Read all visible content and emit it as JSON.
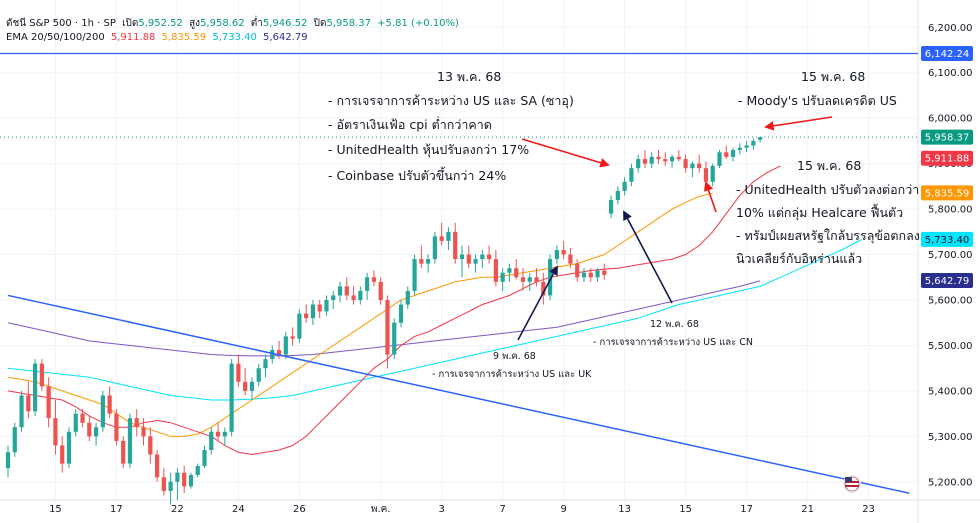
{
  "header": {
    "title": "ดัชนี S&P 500 · 1h · SP",
    "open_label": "เปิด",
    "open": "5,952.52",
    "high_label": "สูง",
    "high": "5,958.62",
    "low_label": "ต่ำ",
    "low": "5,946.52",
    "close_label": "ปิด",
    "close": "5,958.37",
    "change": "+5.81 (+0.10%)",
    "ema_label": "EMA 20/50/100/200",
    "ema_values": [
      "5,911.88",
      "5,835.59",
      "5,733.40",
      "5,642.79"
    ]
  },
  "colors": {
    "up": "#26a69a",
    "down": "#ef5350",
    "ema20": "#f23645",
    "ema50": "#ff9800",
    "ema100": "#00e5ff",
    "ema200": "#7e57c2",
    "trendline": "#2962ff",
    "hline": "#2962ff",
    "arrow_red": "#f21818",
    "arrow_navy": "#131a4e",
    "price_badge": "#089981"
  },
  "chart_data": {
    "type": "candlestick",
    "timeframe": "1h",
    "ylim": [
      5160,
      6260
    ],
    "y_ticks": [
      5200,
      5300,
      5400,
      5500,
      5600,
      5700,
      5800,
      5900,
      6000,
      6100,
      6200
    ],
    "y_tick_labels": [
      "5,200.00",
      "5,300.00",
      "5,400.00",
      "5,500.00",
      "5,600.00",
      "5,700.00",
      "5,800.00",
      "5,900.00",
      "6,000.00",
      "6,100.00",
      "6,200.00"
    ],
    "x_ticks": [
      {
        "label": "15",
        "i": 7
      },
      {
        "label": "17",
        "i": 16
      },
      {
        "label": "22",
        "i": 25
      },
      {
        "label": "24",
        "i": 34
      },
      {
        "label": "26",
        "i": 43
      },
      {
        "label": "พ.ค.",
        "i": 55
      },
      {
        "label": "3",
        "i": 64
      },
      {
        "label": "7",
        "i": 73
      },
      {
        "label": "9",
        "i": 82
      },
      {
        "label": "13",
        "i": 91
      },
      {
        "label": "15",
        "i": 100
      },
      {
        "label": "17",
        "i": 109
      },
      {
        "label": "21",
        "i": 118
      },
      {
        "label": "23",
        "i": 127
      }
    ],
    "x_slots": 134,
    "candles": [
      [
        5230,
        5280,
        5210,
        5265
      ],
      [
        5265,
        5330,
        5255,
        5320
      ],
      [
        5320,
        5400,
        5310,
        5390
      ],
      [
        5390,
        5420,
        5340,
        5355
      ],
      [
        5355,
        5470,
        5345,
        5460
      ],
      [
        5460,
        5470,
        5400,
        5410
      ],
      [
        5410,
        5430,
        5320,
        5340
      ],
      [
        5340,
        5380,
        5260,
        5280
      ],
      [
        5280,
        5300,
        5220,
        5240
      ],
      [
        5240,
        5320,
        5230,
        5310
      ],
      [
        5310,
        5360,
        5300,
        5350
      ],
      [
        5350,
        5360,
        5320,
        5330
      ],
      [
        5330,
        5345,
        5290,
        5300
      ],
      [
        5300,
        5330,
        5280,
        5320
      ],
      [
        5320,
        5400,
        5310,
        5390
      ],
      [
        5390,
        5410,
        5340,
        5350
      ],
      [
        5350,
        5360,
        5280,
        5290
      ],
      [
        5290,
        5300,
        5230,
        5240
      ],
      [
        5240,
        5350,
        5230,
        5340
      ],
      [
        5340,
        5360,
        5300,
        5320
      ],
      [
        5320,
        5340,
        5280,
        5300
      ],
      [
        5300,
        5320,
        5240,
        5260
      ],
      [
        5260,
        5270,
        5200,
        5210
      ],
      [
        5210,
        5230,
        5170,
        5180
      ],
      [
        5180,
        5220,
        5150,
        5200
      ],
      [
        5200,
        5230,
        5160,
        5220
      ],
      [
        5220,
        5235,
        5175,
        5190
      ],
      [
        5190,
        5220,
        5185,
        5215
      ],
      [
        5215,
        5240,
        5210,
        5235
      ],
      [
        5235,
        5280,
        5230,
        5270
      ],
      [
        5270,
        5320,
        5260,
        5310
      ],
      [
        5310,
        5330,
        5290,
        5300
      ],
      [
        5300,
        5320,
        5280,
        5310
      ],
      [
        5310,
        5470,
        5300,
        5460
      ],
      [
        5460,
        5480,
        5410,
        5420
      ],
      [
        5420,
        5450,
        5390,
        5400
      ],
      [
        5400,
        5430,
        5380,
        5420
      ],
      [
        5420,
        5460,
        5410,
        5450
      ],
      [
        5450,
        5480,
        5430,
        5470
      ],
      [
        5470,
        5500,
        5460,
        5490
      ],
      [
        5490,
        5510,
        5470,
        5480
      ],
      [
        5480,
        5530,
        5470,
        5520
      ],
      [
        5520,
        5540,
        5500,
        5515
      ],
      [
        5515,
        5580,
        5505,
        5570
      ],
      [
        5570,
        5590,
        5550,
        5560
      ],
      [
        5560,
        5600,
        5545,
        5590
      ],
      [
        5590,
        5600,
        5560,
        5575
      ],
      [
        5575,
        5610,
        5565,
        5600
      ],
      [
        5600,
        5620,
        5580,
        5610
      ],
      [
        5610,
        5640,
        5595,
        5630
      ],
      [
        5630,
        5650,
        5600,
        5610
      ],
      [
        5610,
        5630,
        5590,
        5600
      ],
      [
        5600,
        5630,
        5590,
        5620
      ],
      [
        5620,
        5660,
        5600,
        5650
      ],
      [
        5650,
        5665,
        5630,
        5640
      ],
      [
        5640,
        5650,
        5590,
        5600
      ],
      [
        5600,
        5610,
        5450,
        5480
      ],
      [
        5480,
        5560,
        5470,
        5550
      ],
      [
        5550,
        5600,
        5540,
        5590
      ],
      [
        5590,
        5630,
        5580,
        5620
      ],
      [
        5620,
        5700,
        5610,
        5690
      ],
      [
        5690,
        5720,
        5670,
        5680
      ],
      [
        5680,
        5700,
        5660,
        5690
      ],
      [
        5690,
        5750,
        5680,
        5740
      ],
      [
        5740,
        5770,
        5720,
        5730
      ],
      [
        5730,
        5760,
        5710,
        5750
      ],
      [
        5750,
        5770,
        5680,
        5690
      ],
      [
        5690,
        5720,
        5650,
        5700
      ],
      [
        5700,
        5720,
        5670,
        5680
      ],
      [
        5680,
        5700,
        5660,
        5690
      ],
      [
        5690,
        5710,
        5670,
        5700
      ],
      [
        5700,
        5720,
        5680,
        5690
      ],
      [
        5690,
        5710,
        5630,
        5640
      ],
      [
        5640,
        5670,
        5620,
        5660
      ],
      [
        5660,
        5680,
        5640,
        5670
      ],
      [
        5670,
        5690,
        5645,
        5650
      ],
      [
        5650,
        5670,
        5620,
        5640
      ],
      [
        5640,
        5660,
        5620,
        5650
      ],
      [
        5650,
        5670,
        5630,
        5640
      ],
      [
        5640,
        5660,
        5590,
        5610
      ],
      [
        5610,
        5700,
        5600,
        5690
      ],
      [
        5690,
        5720,
        5680,
        5710
      ],
      [
        5710,
        5730,
        5690,
        5700
      ],
      [
        5700,
        5715,
        5670,
        5680
      ],
      [
        5680,
        5690,
        5640,
        5650
      ],
      [
        5650,
        5670,
        5640,
        5660
      ],
      [
        5660,
        5670,
        5640,
        5650
      ],
      [
        5650,
        5670,
        5640,
        5665
      ],
      [
        5665,
        5680,
        5645,
        5655
      ],
      [
        5790,
        5830,
        5780,
        5820
      ],
      [
        5820,
        5850,
        5810,
        5840
      ],
      [
        5840,
        5870,
        5830,
        5860
      ],
      [
        5860,
        5900,
        5850,
        5890
      ],
      [
        5890,
        5920,
        5880,
        5910
      ],
      [
        5910,
        5930,
        5890,
        5900
      ],
      [
        5900,
        5925,
        5890,
        5915
      ],
      [
        5915,
        5930,
        5900,
        5910
      ],
      [
        5910,
        5925,
        5895,
        5905
      ],
      [
        5905,
        5920,
        5890,
        5915
      ],
      [
        5915,
        5930,
        5905,
        5910
      ],
      [
        5910,
        5920,
        5880,
        5890
      ],
      [
        5890,
        5905,
        5870,
        5900
      ],
      [
        5900,
        5920,
        5880,
        5890
      ],
      [
        5890,
        5905,
        5850,
        5860
      ],
      [
        5860,
        5900,
        5850,
        5895
      ],
      [
        5895,
        5930,
        5890,
        5925
      ],
      [
        5925,
        5940,
        5910,
        5915
      ],
      [
        5915,
        5935,
        5905,
        5930
      ],
      [
        5930,
        5945,
        5920,
        5935
      ],
      [
        5935,
        5950,
        5925,
        5940
      ],
      [
        5940,
        5955,
        5930,
        5950
      ],
      [
        5952.52,
        5958.62,
        5946.52,
        5958.37
      ]
    ],
    "ema20": [
      5400,
      5395,
      5390,
      5385,
      5380,
      5365,
      5345,
      5330,
      5320,
      5320,
      5330,
      5335,
      5330,
      5320,
      5310,
      5300,
      5280,
      5265,
      5260,
      5265,
      5270,
      5280,
      5300,
      5330,
      5360,
      5390,
      5420,
      5450,
      5470,
      5500,
      5520,
      5530,
      5545,
      5560,
      5575,
      5590,
      5600,
      5610,
      5625,
      5640,
      5650,
      5655,
      5660,
      5665,
      5668,
      5670,
      5675,
      5680,
      5685,
      5690,
      5700,
      5720,
      5750,
      5790,
      5830,
      5860,
      5880,
      5895
    ],
    "ema50": [
      5430,
      5425,
      5420,
      5410,
      5400,
      5390,
      5380,
      5370,
      5350,
      5330,
      5320,
      5310,
      5300,
      5300,
      5305,
      5320,
      5340,
      5360,
      5380,
      5400,
      5420,
      5440,
      5460,
      5480,
      5500,
      5520,
      5540,
      5560,
      5580,
      5600,
      5610,
      5620,
      5630,
      5640,
      5645,
      5650,
      5650,
      5655,
      5660,
      5665,
      5670,
      5675,
      5680,
      5690,
      5700,
      5720,
      5740,
      5760,
      5780,
      5800,
      5815,
      5828,
      5835
    ],
    "ema100": [
      5450,
      5445,
      5440,
      5435,
      5430,
      5420,
      5410,
      5400,
      5390,
      5385,
      5380,
      5380,
      5382,
      5385,
      5390,
      5400,
      5410,
      5420,
      5430,
      5440,
      5450,
      5460,
      5470,
      5480,
      5490,
      5500,
      5510,
      5520,
      5530,
      5540,
      5550,
      5560,
      5575,
      5590,
      5600,
      5610,
      5620,
      5630,
      5650,
      5670,
      5690,
      5710,
      5733
    ],
    "ema200": [
      5550,
      5540,
      5530,
      5520,
      5510,
      5505,
      5500,
      5495,
      5490,
      5485,
      5480,
      5478,
      5477,
      5477,
      5478,
      5480,
      5485,
      5490,
      5495,
      5500,
      5505,
      5510,
      5515,
      5520,
      5525,
      5530,
      5535,
      5540,
      5550,
      5560,
      5570,
      5580,
      5590,
      5600,
      5610,
      5620,
      5630,
      5642
    ],
    "ema20_x": [
      0,
      2,
      4,
      6,
      8,
      10,
      12,
      14,
      16,
      18,
      20,
      22,
      24,
      26,
      28,
      30,
      32,
      34,
      36,
      38,
      40,
      42,
      44,
      46,
      48,
      50,
      52,
      54,
      56,
      58,
      60,
      62,
      64,
      66,
      68,
      70,
      72,
      74,
      76,
      78,
      80,
      82,
      84,
      86,
      88,
      90,
      92,
      94,
      96,
      98,
      100,
      102,
      104,
      106,
      108,
      110,
      112,
      114
    ],
    "ema50_x": [
      0,
      2,
      4,
      6,
      8,
      10,
      12,
      14,
      16,
      18,
      20,
      22,
      24,
      26,
      28,
      30,
      32,
      34,
      36,
      38,
      40,
      42,
      44,
      46,
      48,
      50,
      52,
      54,
      56,
      58,
      60,
      62,
      64,
      66,
      68,
      70,
      72,
      74,
      76,
      78,
      80,
      82,
      84,
      86,
      88,
      90,
      92,
      94,
      96,
      98,
      100,
      102,
      104
    ],
    "ema100_x": [
      0,
      3,
      6,
      9,
      12,
      15,
      18,
      21,
      24,
      27,
      30,
      33,
      36,
      39,
      42,
      45,
      48,
      51,
      54,
      57,
      60,
      63,
      66,
      69,
      72,
      75,
      78,
      81,
      84,
      87,
      90,
      93,
      96,
      99,
      102,
      105,
      108,
      111,
      114,
      117,
      120,
      123,
      126
    ],
    "ema200_x": [
      0,
      3,
      6,
      9,
      12,
      15,
      18,
      21,
      24,
      27,
      30,
      33,
      36,
      39,
      42,
      45,
      48,
      51,
      54,
      57,
      60,
      63,
      66,
      69,
      72,
      75,
      78,
      81,
      84,
      87,
      90,
      93,
      96,
      99,
      102,
      105,
      108,
      111
    ],
    "hline_value": 6142.24,
    "trendline": {
      "from": [
        0,
        5610
      ],
      "to": [
        133,
        5175
      ]
    },
    "price_labels": [
      {
        "value": 6142.24,
        "text": "6,142.24",
        "color": "#2962ff"
      },
      {
        "value": 5958.37,
        "text": "5,958.37",
        "color": "#089981"
      },
      {
        "value": 5911.88,
        "text": "5,911.88",
        "color": "#f23645"
      },
      {
        "value": 5835.59,
        "text": "5,835.59",
        "color": "#ff9800"
      },
      {
        "value": 5733.4,
        "text": "5,733.40",
        "color": "#00e5ff"
      },
      {
        "value": 5642.79,
        "text": "5,642.79",
        "color": "#2a2e8f"
      }
    ]
  },
  "annotations": {
    "a1_date": "13 พ.ค. 68",
    "a1_line1": "- การเจรจาการค้าระหว่าง US และ SA (ซาอุ)",
    "a1_line2": "- อัตราเงินเฟ้อ cpi ต่ำกว่าคาด",
    "a1_line3": "- UnitedHealth หุ้นปรับลงกว่า 17%",
    "a1_line4": "- Coinbase ปรับตัวขึ้นกว่า 24%",
    "a2_date": "15 พ.ค. 68",
    "a2_line1": "- Moody's ปรับลดเครดิต US",
    "a3_date": "15 พ.ค. 68",
    "a3_line1": "- UnitedHealth ปรับตัวลงต่อกว่า",
    "a3_line2": "10% แต่กลุ่ม Healcare ฟื้นตัว",
    "a3_line3": "- ทรัมป์เผยสหรัฐใกล้บรรลุข้อตกลง",
    "a3_line4": "นิวเคลียร์กับอิหร่านแล้ว",
    "a4_date": "9 พ.ค. 68",
    "a4_line1": "- การเจรจาการค้าระหว่าง US และ UK",
    "a5_date": "12 พ.ค. 68",
    "a5_line1": "- การเจรจาการค้าระหว่าง US และ CN"
  }
}
